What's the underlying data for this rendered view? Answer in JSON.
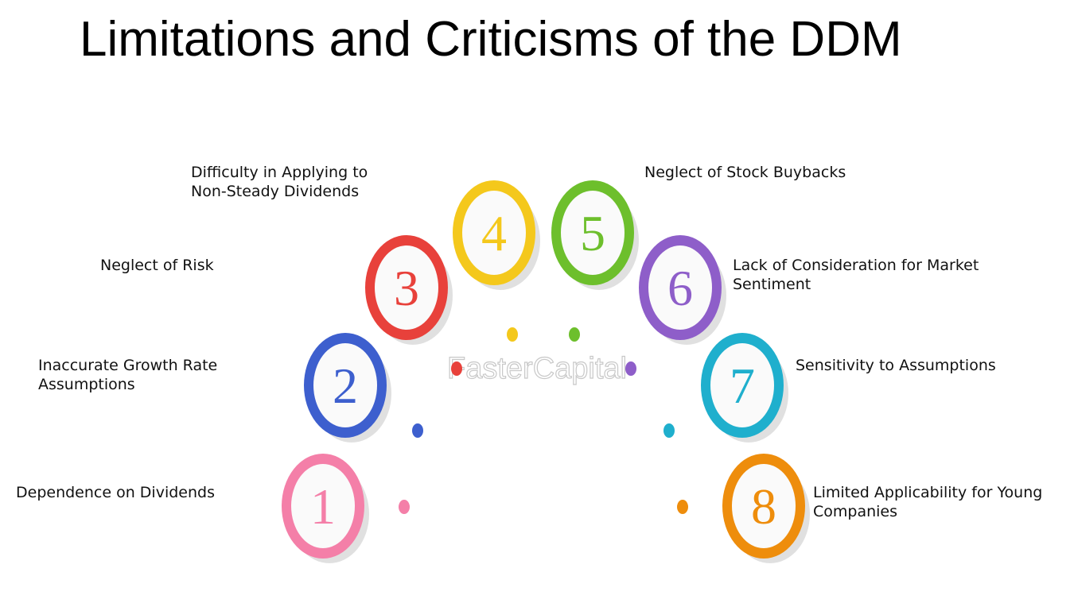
{
  "header": {
    "title": "Limitations and Criticisms of the DDM"
  },
  "watermark": "FasterCapital",
  "items": [
    {
      "number": "1",
      "label": [
        "Dependence on Dividends"
      ],
      "color": "#f47fa8"
    },
    {
      "number": "2",
      "label": [
        "Inaccurate Growth Rate",
        "Assumptions"
      ],
      "color": "#3d5fce"
    },
    {
      "number": "3",
      "label": [
        "Neglect of Risk"
      ],
      "color": "#e8413b"
    },
    {
      "number": "4",
      "label": [
        "Difficulty in Applying to",
        "Non-Steady Dividends"
      ],
      "color": "#f4c81c"
    },
    {
      "number": "5",
      "label": [
        "Neglect of Stock Buybacks"
      ],
      "color": "#6dbf2c"
    },
    {
      "number": "6",
      "label": [
        "Lack of Consideration for Market",
        "Sentiment"
      ],
      "color": "#8e5ec9"
    },
    {
      "number": "7",
      "label": [
        "Sensitivity to Assumptions"
      ],
      "color": "#1fafcd"
    },
    {
      "number": "8",
      "label": [
        "Limited Applicability for Young",
        "Companies"
      ],
      "color": "#ee8d0c"
    }
  ]
}
